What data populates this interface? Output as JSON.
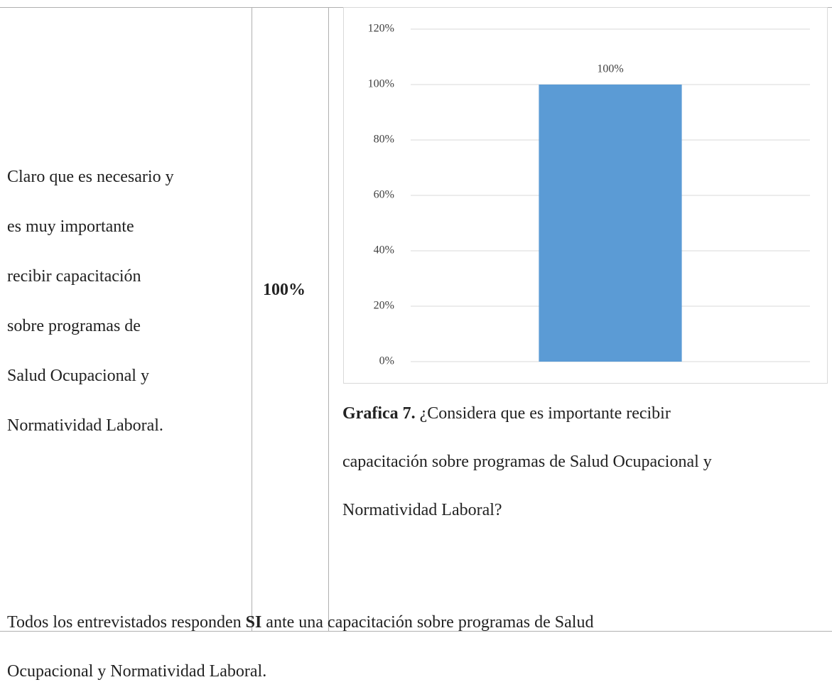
{
  "table": {
    "rows": [
      [
        {
          "lines": [
            "Claro que es necesario y",
            "es muy importante",
            "recibir capacitación",
            "sobre programas de",
            "Salud Ocupacional y",
            "Normatividad Laboral."
          ]
        },
        "100%"
      ]
    ]
  },
  "chart_data": {
    "type": "bar",
    "categories": [
      null
    ],
    "values": [
      100
    ],
    "value_labels": [
      "100%"
    ],
    "color": "#5b9bd5",
    "ylim": [
      0,
      120
    ],
    "yticks": [
      {
        "value": 0,
        "label": "0%"
      },
      {
        "value": 20,
        "label": "20%"
      },
      {
        "value": 40,
        "label": "40%"
      },
      {
        "value": 60,
        "label": "60%"
      },
      {
        "value": 80,
        "label": "80%"
      },
      {
        "value": 100,
        "label": "100%"
      },
      {
        "value": 120,
        "label": "120%"
      }
    ],
    "grid": true
  },
  "caption": {
    "label": "Grafica 7.",
    "lines": [
      "¿Considera que es importante recibir",
      "capacitación sobre programas de Salud Ocupacional y",
      "Normatividad Laboral?"
    ]
  },
  "conclusion": {
    "parts": [
      "Todos los entrevistados responden ",
      "SI",
      " ante una capacitación sobre programas de Salud",
      "Ocupacional y Normatividad Laboral."
    ]
  }
}
